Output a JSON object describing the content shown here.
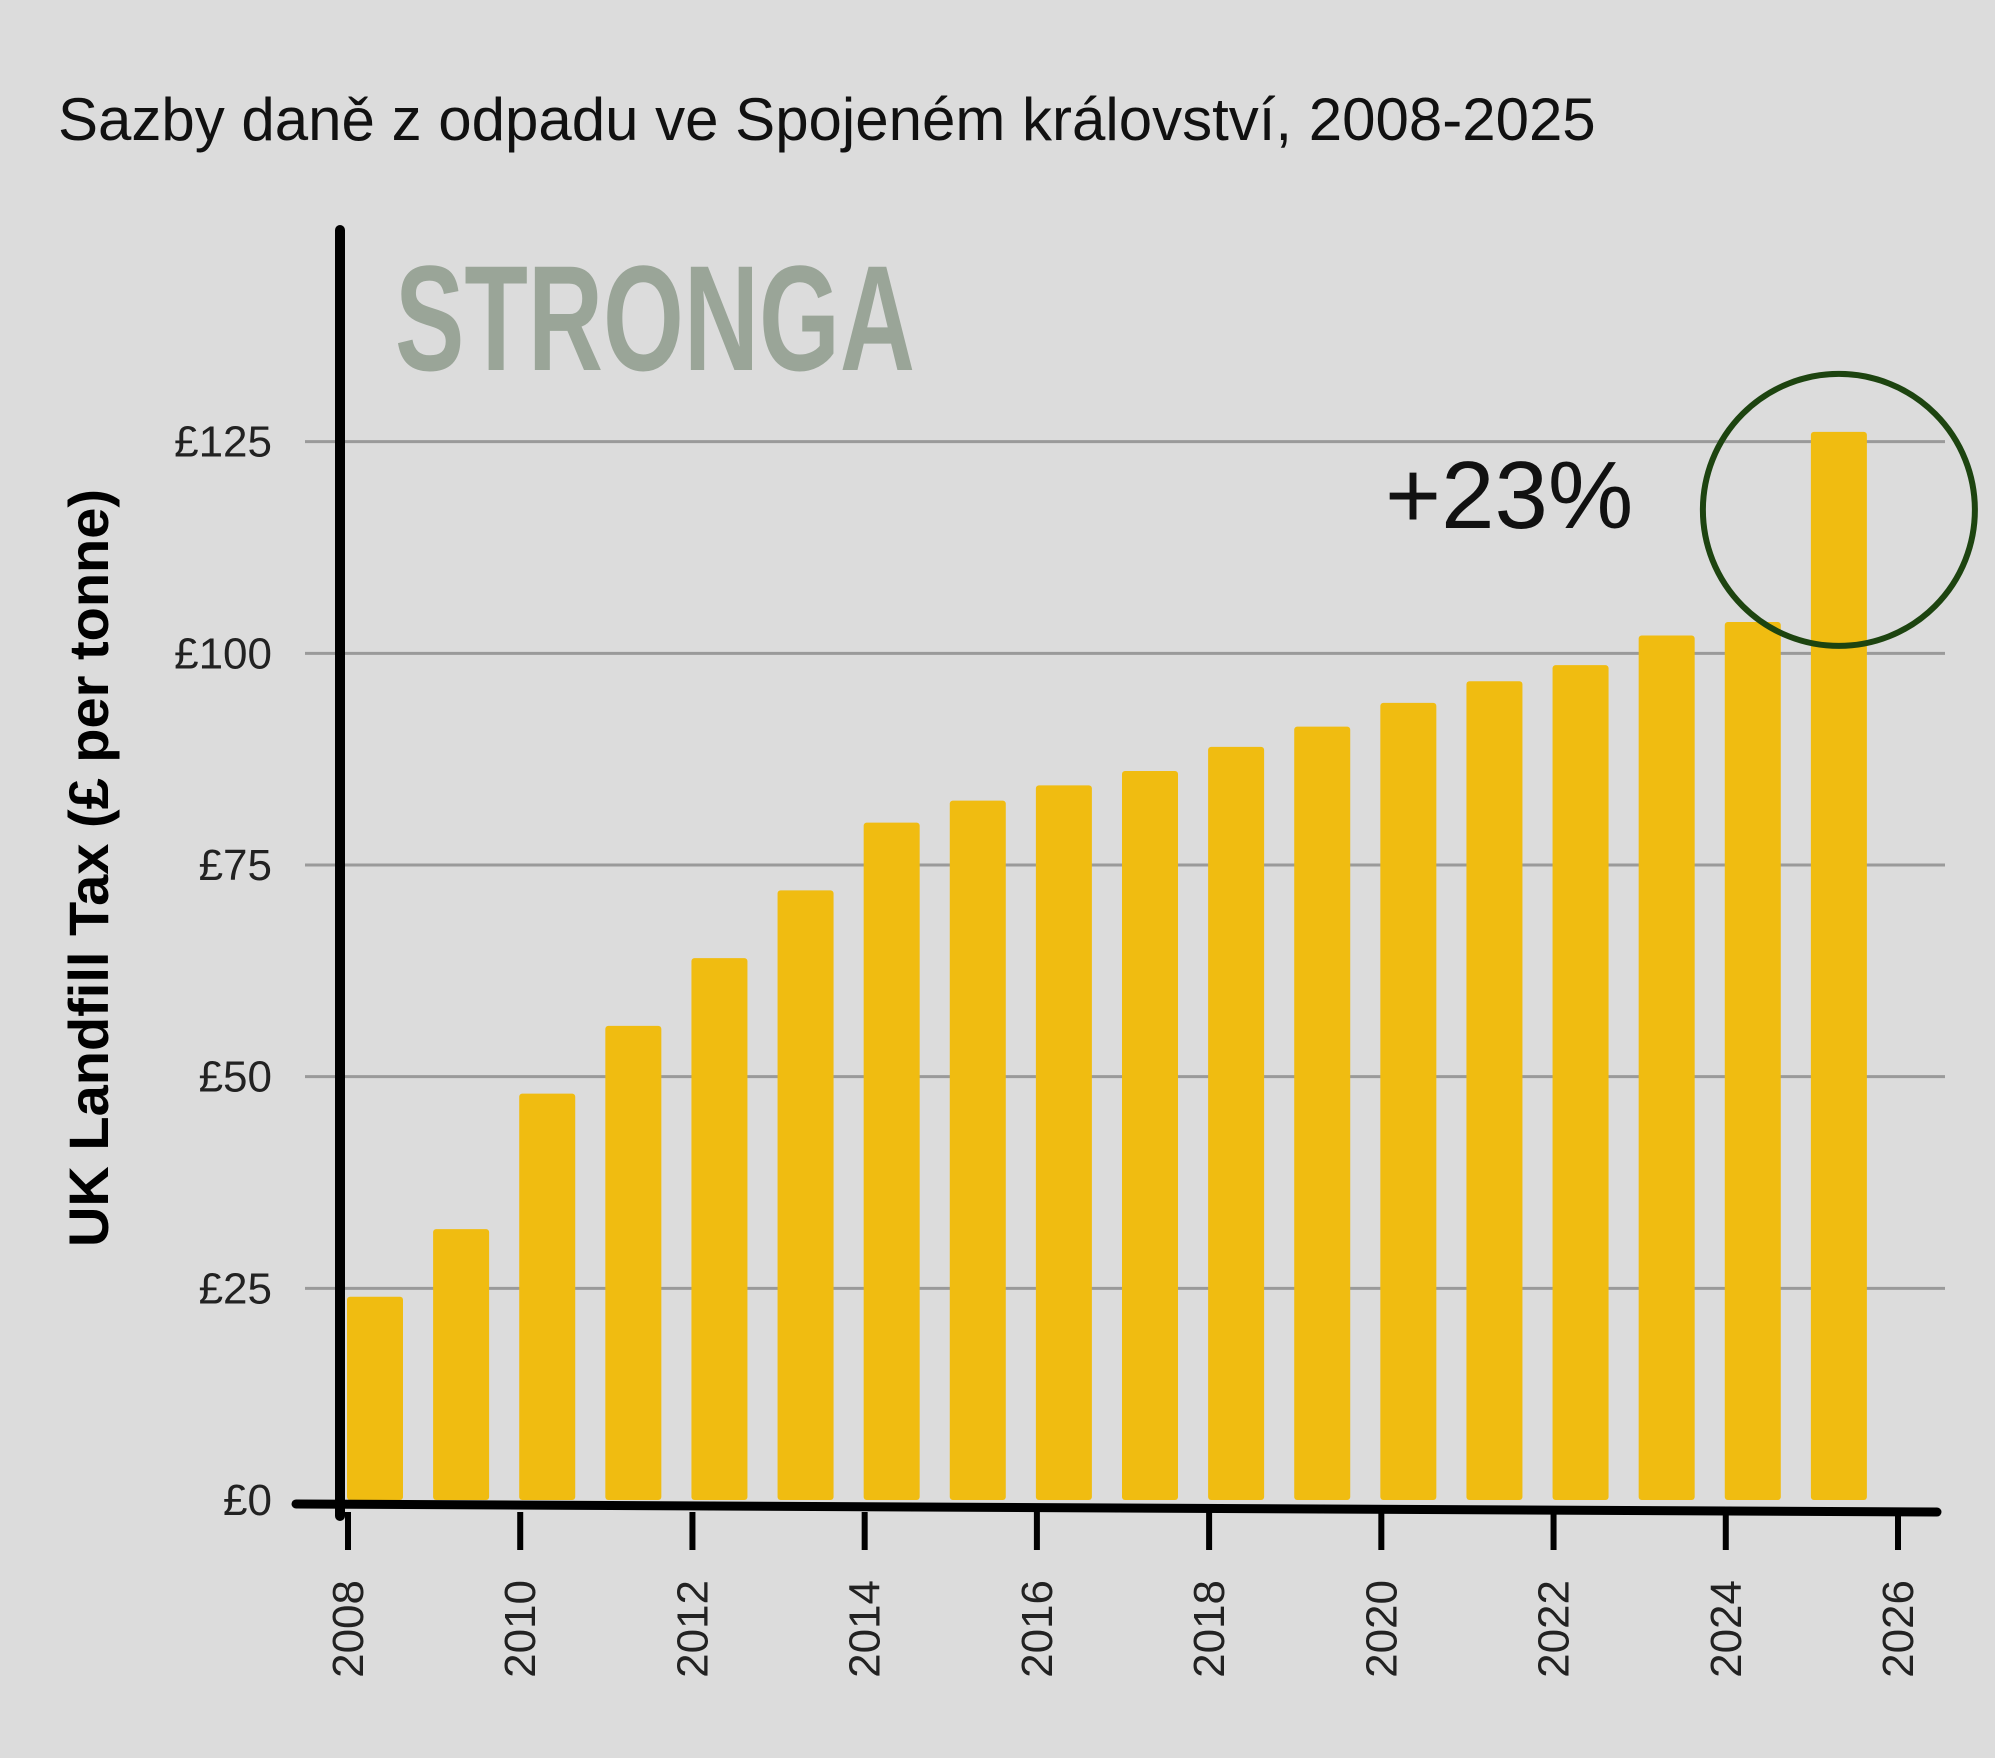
{
  "brand_text": "STRONGA",
  "annotation_text": "+23%",
  "colors": {
    "background": "#dcdcdc",
    "bar": "#f0bc11",
    "brand": "#9aa598",
    "circle": "#1d4410",
    "grid": "#9a9a9a",
    "axis": "#000000"
  },
  "chart_data": {
    "type": "bar",
    "title": "Sazby daně z odpadu ve Spojeném království, 2008-2025",
    "xlabel": "",
    "ylabel": "UK Landfill Tax (£ per tonne)",
    "x": [
      2008,
      2009,
      2010,
      2011,
      2012,
      2013,
      2014,
      2015,
      2016,
      2017,
      2018,
      2019,
      2020,
      2021,
      2022,
      2023,
      2024,
      2025
    ],
    "values": [
      24,
      32,
      48,
      56,
      64,
      72,
      80,
      82.6,
      84.4,
      86.1,
      88.95,
      91.35,
      94.15,
      96.7,
      98.6,
      102.1,
      103.7,
      126.15
    ],
    "ylim": [
      0,
      150
    ],
    "xlim": [
      2008,
      2026
    ],
    "yticks": [
      0,
      25,
      50,
      75,
      100,
      125
    ],
    "ytick_labels": [
      "£0",
      "£25",
      "£50",
      "£75",
      "£100",
      "£125"
    ],
    "xticks": [
      2008,
      2010,
      2012,
      2014,
      2016,
      2018,
      2020,
      2022,
      2024,
      2026
    ],
    "xtick_labels": [
      "2008",
      "2010",
      "2012",
      "2014",
      "2016",
      "2018",
      "2020",
      "2022",
      "2024",
      "2026"
    ],
    "highlight_year": 2025,
    "grid": true
  }
}
